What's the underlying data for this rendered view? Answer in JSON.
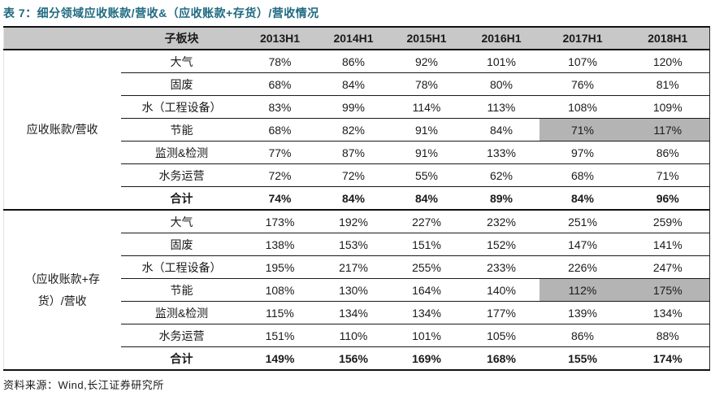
{
  "title": "表 7：细分领域应收账款/营收&（应收账款+存货）/营收情况",
  "source": "资料来源：Wind,长江证券研究所",
  "colors": {
    "title": "#1e6a80",
    "header_bg": "#c8c8c8",
    "highlight_bg": "#b4b4b4",
    "line": "#111111"
  },
  "chart_data": {
    "type": "table",
    "title": "表 7：细分领域应收账款/营收&（应收账款+存货）/营收情况",
    "columns": [
      "",
      "子板块",
      "2013H1",
      "2014H1",
      "2015H1",
      "2016H1",
      "2017H1",
      "2018H1"
    ],
    "sections": [
      {
        "group_label": "应收账款/营收",
        "rows": [
          {
            "label": "大气",
            "values": [
              "78%",
              "86%",
              "92%",
              "101%",
              "107%",
              "120%"
            ]
          },
          {
            "label": "固废",
            "values": [
              "68%",
              "84%",
              "78%",
              "80%",
              "76%",
              "81%"
            ]
          },
          {
            "label": "水（工程设备）",
            "values": [
              "83%",
              "99%",
              "114%",
              "113%",
              "108%",
              "109%"
            ]
          },
          {
            "label": "节能",
            "values": [
              "68%",
              "82%",
              "91%",
              "84%",
              "71%",
              "117%"
            ],
            "highlight_cols": [
              4,
              5
            ]
          },
          {
            "label": "监测&检测",
            "values": [
              "77%",
              "87%",
              "91%",
              "133%",
              "97%",
              "86%"
            ]
          },
          {
            "label": "水务运营",
            "values": [
              "72%",
              "72%",
              "55%",
              "62%",
              "68%",
              "71%"
            ]
          },
          {
            "label": "合计",
            "values": [
              "74%",
              "84%",
              "84%",
              "89%",
              "84%",
              "96%"
            ],
            "bold": true
          }
        ]
      },
      {
        "group_label": "（应收账款+存货）/营收",
        "rows": [
          {
            "label": "大气",
            "values": [
              "173%",
              "192%",
              "227%",
              "232%",
              "251%",
              "259%"
            ]
          },
          {
            "label": "固废",
            "values": [
              "138%",
              "153%",
              "151%",
              "152%",
              "147%",
              "141%"
            ]
          },
          {
            "label": "水（工程设备）",
            "values": [
              "195%",
              "217%",
              "255%",
              "233%",
              "226%",
              "247%"
            ]
          },
          {
            "label": "节能",
            "values": [
              "108%",
              "130%",
              "164%",
              "140%",
              "112%",
              "175%"
            ],
            "highlight_cols": [
              4,
              5
            ]
          },
          {
            "label": "监测&检测",
            "values": [
              "115%",
              "134%",
              "134%",
              "177%",
              "139%",
              "134%"
            ]
          },
          {
            "label": "水务运营",
            "values": [
              "151%",
              "110%",
              "101%",
              "105%",
              "86%",
              "88%"
            ]
          },
          {
            "label": "合计",
            "values": [
              "149%",
              "156%",
              "169%",
              "168%",
              "155%",
              "174%"
            ],
            "bold": true
          }
        ]
      }
    ],
    "notes": "highlight_cols are 0-based indexes into values (2017H1 and 2018H1 cells of 节能 rows have gray highlight)",
    "source": "资料来源：Wind,长江证券研究所"
  }
}
